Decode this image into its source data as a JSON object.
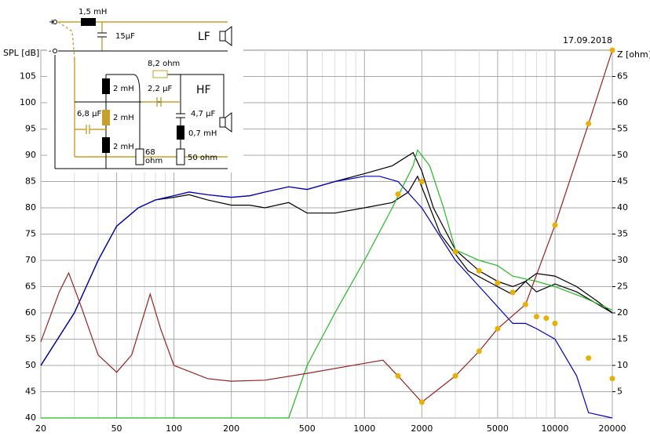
{
  "chart_data": {
    "type": "line",
    "ylabel": "SPL [dB]",
    "y2label": "Z [ohm]",
    "date": "17.09.2018",
    "xscale": "log",
    "grid": true,
    "xlim": [
      20,
      20000
    ],
    "xticks": [
      20,
      50,
      100,
      200,
      500,
      1000,
      2000,
      5000,
      10000,
      20000
    ],
    "x_minor_ticks": [
      30,
      40,
      60,
      70,
      80,
      90,
      300,
      400,
      600,
      700,
      800,
      900,
      3000,
      4000,
      6000,
      7000,
      8000,
      9000
    ],
    "ylim": [
      40,
      110
    ],
    "yticks": [
      40,
      45,
      50,
      55,
      60,
      65,
      70,
      75,
      80,
      85,
      90,
      95,
      100,
      105
    ],
    "y2lim": [
      0,
      70
    ],
    "y2ticks": [
      5,
      10,
      15,
      20,
      25,
      30,
      35,
      40,
      45,
      50,
      55,
      60,
      65
    ],
    "series": [
      {
        "color": "#000000",
        "axis": "y",
        "x": [
          20,
          30,
          40,
          50,
          65,
          80,
          100,
          120,
          150,
          200,
          250,
          300,
          400,
          500,
          700,
          1000,
          1400,
          1800,
          2000,
          2300,
          3000,
          4000,
          5000,
          6000,
          7000,
          8000,
          10000,
          13000,
          17000,
          20000
        ],
        "values": [
          50,
          60,
          70,
          76.5,
          80,
          81.5,
          82.3,
          83,
          82.5,
          82,
          82.3,
          83,
          84,
          83.5,
          85,
          86.5,
          88,
          90.5,
          87,
          80,
          72,
          68,
          66,
          65,
          66,
          67.5,
          67,
          65,
          62,
          60
        ]
      },
      {
        "color": "#000000",
        "axis": "y",
        "x": [
          20,
          30,
          40,
          50,
          65,
          80,
          100,
          120,
          150,
          200,
          250,
          300,
          400,
          500,
          700,
          1000,
          1400,
          1700,
          1900,
          2100,
          2500,
          3500,
          5000,
          6000,
          7000,
          8000,
          10000,
          13000,
          17000,
          20000
        ],
        "values": [
          50,
          60,
          70,
          76.5,
          80,
          81.5,
          82,
          82.5,
          81.5,
          80.5,
          80.5,
          80,
          81,
          79,
          79,
          80,
          81,
          83,
          86,
          82,
          75,
          68,
          65,
          63.5,
          66,
          64,
          65.5,
          64,
          61.5,
          60
        ]
      },
      {
        "color": "#0000cc",
        "axis": "y",
        "x": [
          20,
          30,
          40,
          50,
          65,
          80,
          100,
          120,
          150,
          200,
          250,
          300,
          400,
          500,
          700,
          1000,
          1200,
          1500,
          2000,
          3000,
          4500,
          6000,
          7000,
          8000,
          10000,
          13000,
          15000,
          20000
        ],
        "values": [
          50,
          60,
          70,
          76.5,
          80,
          81.5,
          82.3,
          83,
          82.5,
          82,
          82.3,
          83,
          84,
          83.5,
          85,
          86,
          86,
          85,
          80,
          70,
          63,
          58,
          58,
          57,
          55,
          48,
          41,
          40
        ]
      },
      {
        "color": "#22bb22",
        "axis": "y",
        "x": [
          20,
          400,
          500,
          700,
          1000,
          1400,
          1800,
          1900,
          2200,
          2600,
          3000,
          4000,
          5000,
          6000,
          8000,
          10000,
          14000,
          20000
        ],
        "values": [
          40,
          40,
          50,
          60,
          70,
          80,
          88,
          91,
          88,
          80,
          72,
          70,
          69,
          67,
          66,
          65,
          63,
          60.5
        ]
      },
      {
        "color": "#992222",
        "axis": "y2",
        "x": [
          20,
          25,
          28,
          32,
          40,
          50,
          60,
          75,
          85,
          100,
          150,
          200,
          300,
          500,
          1000,
          1250,
          1500,
          2000,
          3000,
          4000,
          5000,
          7000,
          10000,
          15000,
          20000
        ],
        "values": [
          14.5,
          24,
          27.6,
          22,
          12,
          8.7,
          12,
          23.6,
          17,
          10,
          7.5,
          7,
          7.2,
          8.5,
          10.4,
          11,
          8,
          3,
          8,
          12.7,
          17,
          21.6,
          36.7,
          56,
          70
        ]
      },
      {
        "color": "#e8b000",
        "axis": "y2",
        "mode": "markers",
        "x": [
          1500,
          2000,
          3000,
          4000,
          5000,
          10000,
          15000,
          20000
        ],
        "values": [
          8,
          3,
          8,
          12.7,
          17,
          36.7,
          56,
          70
        ]
      },
      {
        "color": "#e8b000",
        "axis": "y2",
        "mode": "markers",
        "x": [
          1500,
          2000,
          3000,
          4000,
          5000,
          6000,
          7000,
          8000,
          9000,
          10000,
          15000,
          20000
        ],
        "values": [
          42.6,
          45,
          31.6,
          28,
          25.7,
          23.9,
          21.6,
          19.3,
          19,
          18,
          11.4,
          7.5
        ]
      }
    ]
  },
  "circuit": {
    "labels": [
      "+",
      "-",
      "1,5 mH",
      "15µF",
      "LF",
      "8,2 ohm",
      "2 mH",
      "2,2 µF",
      "HF",
      "6,8 µF",
      "2 mH",
      "4,7 µF",
      "0,7 mH",
      "2 mH",
      "68",
      "ohm",
      "50 ohm"
    ]
  }
}
